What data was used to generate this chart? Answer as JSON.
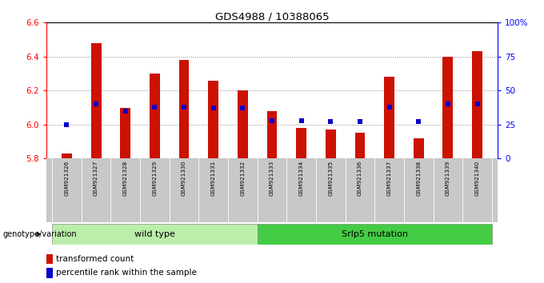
{
  "title": "GDS4988 / 10388065",
  "samples": [
    "GSM921326",
    "GSM921327",
    "GSM921328",
    "GSM921329",
    "GSM921330",
    "GSM921331",
    "GSM921332",
    "GSM921333",
    "GSM921334",
    "GSM921335",
    "GSM921336",
    "GSM921337",
    "GSM921338",
    "GSM921339",
    "GSM921340"
  ],
  "transformed_counts": [
    5.83,
    6.48,
    6.1,
    6.3,
    6.38,
    6.26,
    6.2,
    6.08,
    5.98,
    5.97,
    5.95,
    6.28,
    5.92,
    6.4,
    6.43
  ],
  "percentile_ranks": [
    25,
    40,
    35,
    38,
    38,
    37,
    37,
    28,
    28,
    27,
    27,
    38,
    27,
    40,
    40
  ],
  "ylim_left": [
    5.8,
    6.6
  ],
  "ylim_right": [
    0,
    100
  ],
  "yticks_left": [
    5.8,
    6.0,
    6.2,
    6.4,
    6.6
  ],
  "yticks_right": [
    0,
    25,
    50,
    75,
    100
  ],
  "ytick_labels_right": [
    "0",
    "25",
    "50",
    "75",
    "100%"
  ],
  "grid_values": [
    6.0,
    6.2,
    6.4
  ],
  "bar_color": "#cc1100",
  "blue_color": "#0000cc",
  "group1_label": "wild type",
  "group2_label": "Srlp5 mutation",
  "group1_color": "#bbeeaa",
  "group2_color": "#44cc44",
  "xlabel_group": "genotype/variation",
  "legend_bar": "transformed count",
  "legend_dot": "percentile rank within the sample",
  "background_color": "#ffffff",
  "tick_area_color": "#c8c8c8",
  "bar_width": 0.35
}
